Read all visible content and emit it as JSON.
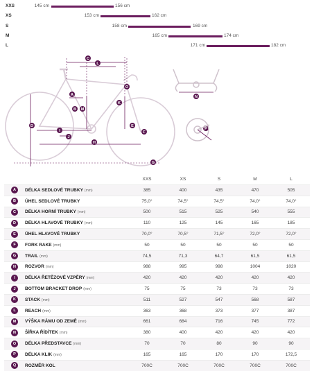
{
  "size_chart": [
    {
      "size": "XXS",
      "min": "145 cm",
      "max": "156 cm"
    },
    {
      "size": "XS",
      "min": "153 cm",
      "max": "162 cm"
    },
    {
      "size": "S",
      "min": "158 cm",
      "max": "169 cm"
    },
    {
      "size": "M",
      "min": "165 cm",
      "max": "174 cm"
    },
    {
      "size": "L",
      "min": "171 cm",
      "max": "182 cm"
    }
  ],
  "diagram_letters": [
    "A",
    "B",
    "C",
    "D",
    "E",
    "F",
    "G",
    "H",
    "I",
    "J",
    "K",
    "L",
    "M",
    "N",
    "O",
    "P",
    "Q"
  ],
  "columns": [
    "XXS",
    "XS",
    "S",
    "M",
    "L"
  ],
  "rows": [
    {
      "key": "A",
      "name": "DÉLKA SEDLOVÉ TRUBKY",
      "unit": "(mm)",
      "values": [
        "385",
        "400",
        "435",
        "470",
        "505"
      ]
    },
    {
      "key": "B",
      "name": "ÚHEL SEDLOVÉ TRUBKY",
      "unit": "",
      "values": [
        "75,0°",
        "74,5°",
        "74,5°",
        "74,0°",
        "74,0°"
      ]
    },
    {
      "key": "C",
      "name": "DÉLKA HORNÍ TRUBKY",
      "unit": "(mm)",
      "values": [
        "500",
        "515",
        "525",
        "540",
        "555"
      ]
    },
    {
      "key": "D",
      "name": "DÉLKA HLAVOVÉ TRUBKY",
      "unit": "(mm)",
      "values": [
        "110",
        "125",
        "145",
        "165",
        "185"
      ]
    },
    {
      "key": "E",
      "name": "ÚHEL HLAVOVÉ TRUBKY",
      "unit": "",
      "values": [
        "70,0°",
        "70,5°",
        "71,5°",
        "72,0°",
        "72,0°"
      ]
    },
    {
      "key": "F",
      "name": "FORK RAKE",
      "unit": "(mm)",
      "values": [
        "50",
        "50",
        "50",
        "50",
        "50"
      ]
    },
    {
      "key": "G",
      "name": "TRAIL",
      "unit": "(mm)",
      "values": [
        "74,5",
        "71,3",
        "64,7",
        "61,5",
        "61,5"
      ]
    },
    {
      "key": "H",
      "name": "ROZVOR",
      "unit": "(mm)",
      "values": [
        "988",
        "995",
        "998",
        "1004",
        "1020"
      ]
    },
    {
      "key": "I",
      "name": "DÉLKA ŘETĚZOVÉ VZPĚRY",
      "unit": "(mm)",
      "values": [
        "420",
        "420",
        "420",
        "420",
        "420"
      ]
    },
    {
      "key": "J",
      "name": "BOTTOM BRACKET DROP",
      "unit": "(mm)",
      "values": [
        "75",
        "75",
        "73",
        "73",
        "73"
      ]
    },
    {
      "key": "K",
      "name": "STACK",
      "unit": "(mm)",
      "values": [
        "511",
        "527",
        "547",
        "568",
        "587"
      ]
    },
    {
      "key": "L",
      "name": "REACH",
      "unit": "(mm)",
      "values": [
        "363",
        "368",
        "373",
        "377",
        "387"
      ]
    },
    {
      "key": "M",
      "name": "VÝŠKA RÁMU OD ZEMĚ",
      "unit": "(mm)",
      "values": [
        "661",
        "684",
        "716",
        "745",
        "772"
      ]
    },
    {
      "key": "N",
      "name": "ŠÍŘKA ŘÍDÍTEK",
      "unit": "(mm)",
      "values": [
        "380",
        "400",
        "420",
        "420",
        "420"
      ]
    },
    {
      "key": "O",
      "name": "DÉLKA PŘEDSTAVCE",
      "unit": "(mm)",
      "values": [
        "70",
        "70",
        "80",
        "90",
        "90"
      ]
    },
    {
      "key": "P",
      "name": "DÉLKA KLIK",
      "unit": "(mm)",
      "values": [
        "165",
        "165",
        "170",
        "170",
        "172,5"
      ]
    },
    {
      "key": "Q",
      "name": "ROZMĚR KOL",
      "unit": "",
      "values": [
        "700C",
        "700C",
        "700C",
        "700C",
        "700C"
      ]
    }
  ],
  "colors": {
    "accent": "#6b1d5e",
    "badge": "#5a1850"
  }
}
